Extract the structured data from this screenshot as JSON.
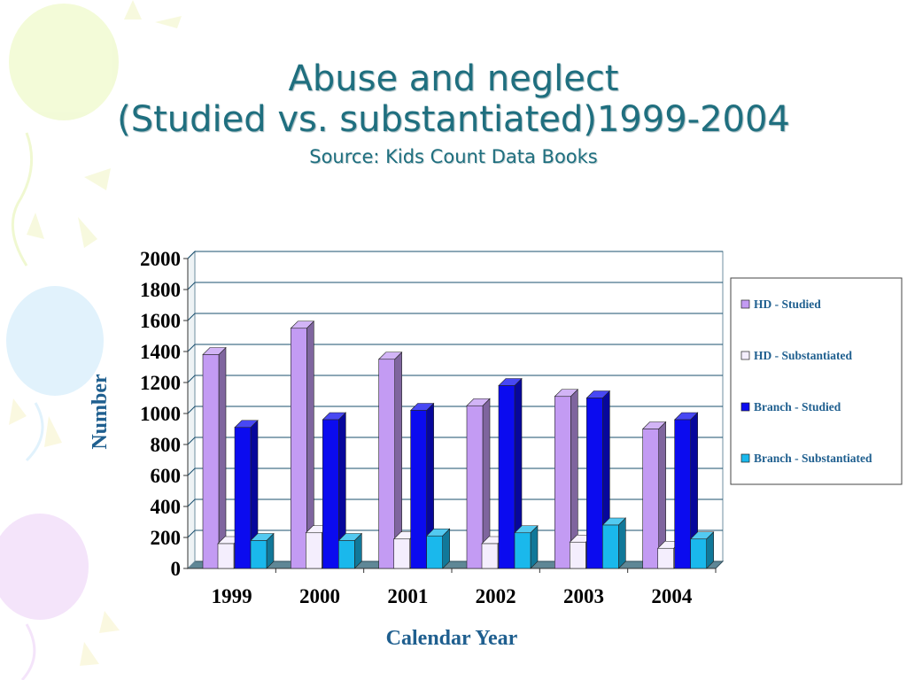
{
  "slide": {
    "title_line1": "Abuse and neglect",
    "title_line2": "(Studied vs. substantiated)1999-2004",
    "subtitle": "Source: Kids Count Data Books"
  },
  "colors": {
    "title": "#1f6f7f",
    "axis_label": "#1f5f8f",
    "gridline": "#1a4f6e",
    "series": [
      "#c39bf3",
      "#f4eefd",
      "#0b0bef",
      "#1ab8ec"
    ]
  },
  "chart_data": {
    "type": "bar",
    "style": "3d-clustered",
    "categories": [
      "1999",
      "2000",
      "2001",
      "2002",
      "2003",
      "2004"
    ],
    "series": [
      {
        "name": "HD - Studied",
        "values": [
          1380,
          1550,
          1350,
          1050,
          1110,
          900
        ]
      },
      {
        "name": "HD - Substantiated",
        "values": [
          160,
          230,
          190,
          160,
          170,
          130
        ]
      },
      {
        "name": "Branch - Studied",
        "values": [
          910,
          960,
          1020,
          1180,
          1100,
          960
        ]
      },
      {
        "name": "Branch - Substantiated",
        "values": [
          180,
          180,
          210,
          230,
          280,
          190
        ]
      }
    ],
    "xlabel": "Calendar Year",
    "ylabel": "Number",
    "ylim": [
      0,
      2000
    ],
    "yticks": [
      "0",
      "200",
      "400",
      "600",
      "800",
      "1000",
      "1200",
      "1400",
      "1600",
      "1800",
      "2000"
    ],
    "grid": true,
    "legend_position": "right"
  }
}
